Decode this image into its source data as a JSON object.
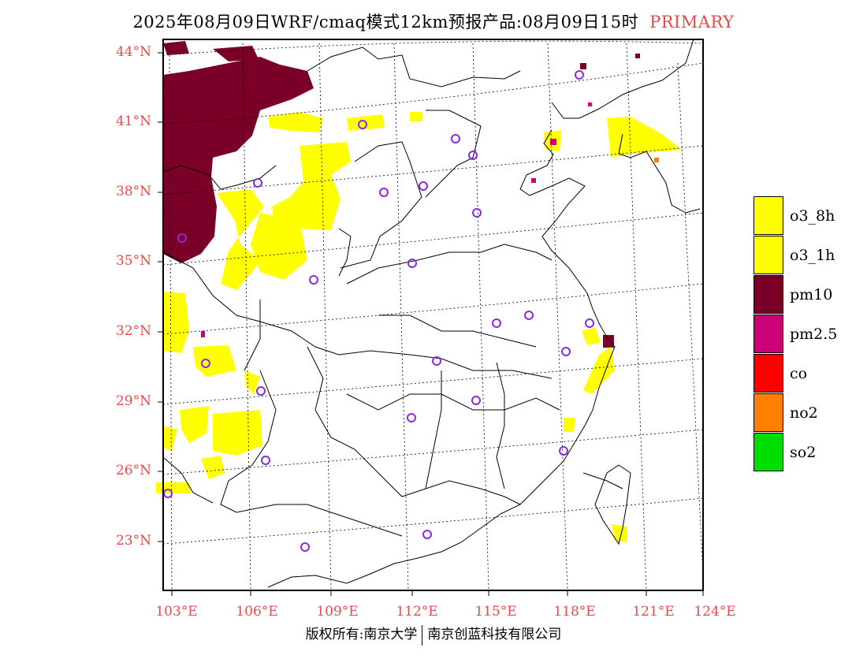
{
  "title": {
    "main": "2025年08月09日WRF/cmaq模式12km预报产品:08月09日15时",
    "tag": "PRIMARY"
  },
  "colors": {
    "label_red": "#e84a4a",
    "o3": "#ffff00",
    "pm10": "#7a0028",
    "pm25": "#cc0077",
    "co": "#ff0000",
    "no2": "#ff7f00",
    "so2": "#00dd00",
    "station": "#8a2be2"
  },
  "axes": {
    "lat_labels": [
      "44°N",
      "41°N",
      "38°N",
      "35°N",
      "32°N",
      "29°N",
      "26°N",
      "23°N"
    ],
    "lon_labels": [
      "103°E",
      "106°E",
      "109°E",
      "112°E",
      "115°E",
      "118°E",
      "121°E",
      "124°E"
    ]
  },
  "legend": [
    {
      "label": "o3_8h",
      "color": "#ffff00"
    },
    {
      "label": "o3_1h",
      "color": "#ffff00"
    },
    {
      "label": "pm10",
      "color": "#7a0028"
    },
    {
      "label": "pm2.5",
      "color": "#cc0077"
    },
    {
      "label": "co",
      "color": "#ff0000"
    },
    {
      "label": "no2",
      "color": "#ff7f00"
    },
    {
      "label": "so2",
      "color": "#00dd00"
    }
  ],
  "footer": {
    "left": "版权所有:南京大学",
    "right": "南京创蓝科技有限公司"
  }
}
